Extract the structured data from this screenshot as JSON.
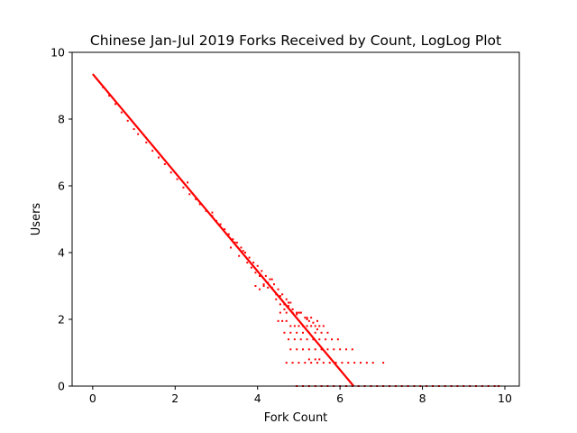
{
  "chart_data": {
    "type": "scatter",
    "title": "Chinese Jan-Jul 2019 Forks Received by Count, LogLog Plot",
    "xlabel": "Fork Count",
    "ylabel": "Users",
    "xlim": [
      -0.5,
      10.35
    ],
    "ylim": [
      0,
      10
    ],
    "xticks": [
      "0",
      "2",
      "4",
      "6",
      "8",
      "10"
    ],
    "yticks": [
      "0",
      "2",
      "4",
      "6",
      "8",
      "10"
    ],
    "grid": false,
    "legend": "none",
    "marker_color": "#ff0000",
    "trend": {
      "x": [
        0,
        6.33
      ],
      "y": [
        9.35,
        0
      ]
    },
    "series": [
      {
        "x": [
          0.1,
          0.25,
          0.4,
          0.55,
          0.7,
          0.85,
          1.0,
          1.1,
          1.3,
          1.45,
          1.6,
          1.75,
          1.9,
          2.05,
          2.2,
          2.35,
          2.5,
          2.6,
          2.75,
          2.9,
          3.0,
          3.1,
          3.2,
          3.3,
          3.4,
          3.5,
          3.6,
          3.7,
          3.8,
          3.9,
          4.0,
          4.1,
          4.2,
          4.3,
          4.4,
          4.5,
          4.6,
          4.7,
          4.8,
          2.3,
          2.9,
          3.25,
          3.35,
          3.45,
          3.55,
          3.65,
          3.75,
          3.85,
          3.95,
          4.05,
          4.15,
          4.25,
          4.35,
          4.45,
          4.55,
          4.65,
          4.75,
          4.85,
          4.95,
          5.05,
          5.15,
          5.25,
          5.35,
          5.45,
          3.95,
          4.05,
          4.15,
          4.25,
          4.35,
          4.45,
          4.55,
          4.65,
          4.75,
          4.85,
          4.95,
          5.05,
          5.2,
          4.55,
          4.7,
          4.85,
          5.0,
          5.2,
          5.3,
          5.45,
          4.5,
          4.6,
          4.7,
          4.8,
          4.9,
          5.0,
          5.1,
          5.2,
          5.3,
          5.4,
          5.5,
          5.6,
          4.65,
          4.8,
          4.95,
          5.1,
          5.25,
          5.4,
          5.55,
          5.7,
          4.75,
          4.9,
          5.05,
          5.2,
          5.35,
          5.5,
          5.65,
          5.8,
          5.95,
          4.8,
          4.95,
          5.1,
          5.25,
          5.4,
          5.55,
          5.7,
          5.85,
          6.0,
          6.15,
          6.3,
          4.7,
          4.85,
          5.0,
          5.15,
          5.3,
          5.45,
          5.6,
          5.75,
          5.9,
          6.05,
          6.2,
          6.35,
          6.5,
          6.65,
          6.8,
          7.05,
          5.25,
          5.4,
          5.5,
          4.95,
          5.1,
          5.25,
          5.4,
          5.55,
          5.7,
          5.85,
          6.0,
          6.15,
          6.3,
          6.45,
          6.6,
          6.75,
          6.9,
          7.05,
          7.2,
          7.35,
          7.5,
          7.65,
          7.8,
          7.95,
          8.1,
          8.25,
          8.4,
          8.55,
          8.7,
          8.85,
          9.0,
          9.15,
          9.3,
          9.45,
          9.6,
          9.75,
          9.85
        ],
        "y": [
          9.2,
          8.95,
          8.7,
          8.45,
          8.2,
          7.95,
          7.7,
          7.55,
          7.3,
          7.05,
          6.85,
          6.65,
          6.4,
          6.2,
          5.95,
          5.75,
          5.6,
          5.45,
          5.25,
          5.1,
          4.95,
          4.85,
          4.7,
          4.55,
          4.4,
          4.3,
          4.15,
          4.0,
          3.85,
          3.7,
          3.6,
          3.45,
          3.3,
          3.2,
          3.05,
          2.9,
          2.75,
          2.6,
          2.5,
          6.1,
          5.2,
          4.55,
          4.15,
          4.3,
          3.9,
          4.05,
          3.7,
          3.55,
          3.4,
          3.3,
          3.0,
          3.1,
          2.95,
          2.75,
          2.7,
          2.45,
          2.4,
          2.3,
          2.2,
          2.2,
          2.05,
          1.95,
          1.9,
          1.7,
          3.0,
          2.9,
          3.05,
          2.95,
          3.2,
          2.6,
          2.45,
          2.3,
          2.5,
          2.3,
          2.15,
          2.2,
          2.0,
          2.2,
          2.2,
          2.2,
          2.2,
          2.05,
          2.05,
          1.95,
          1.95,
          1.95,
          1.95,
          1.8,
          1.8,
          1.8,
          1.8,
          1.8,
          1.8,
          1.8,
          1.8,
          1.8,
          1.6,
          1.6,
          1.6,
          1.6,
          1.6,
          1.6,
          1.6,
          1.6,
          1.4,
          1.4,
          1.4,
          1.4,
          1.4,
          1.4,
          1.4,
          1.4,
          1.4,
          1.1,
          1.1,
          1.1,
          1.1,
          1.1,
          1.1,
          1.1,
          1.1,
          1.1,
          1.1,
          1.1,
          0.7,
          0.7,
          0.7,
          0.7,
          0.7,
          0.7,
          0.7,
          0.7,
          0.7,
          0.7,
          0.7,
          0.7,
          0.7,
          0.7,
          0.7,
          0.7,
          0.8,
          0.8,
          0.8,
          0.0,
          0.0,
          0.0,
          0.0,
          0.0,
          0.0,
          0.0,
          0.0,
          0.0,
          0.0,
          0.0,
          0.0,
          0.0,
          0.0,
          0.0,
          0.0,
          0.0,
          0.0,
          0.0,
          0.0,
          0.0,
          0.0,
          0.0,
          0.0,
          0.0,
          0.0,
          0.0,
          0.0,
          0.0,
          0.0,
          0.0,
          0.0,
          0.0,
          0.0
        ]
      }
    ]
  }
}
